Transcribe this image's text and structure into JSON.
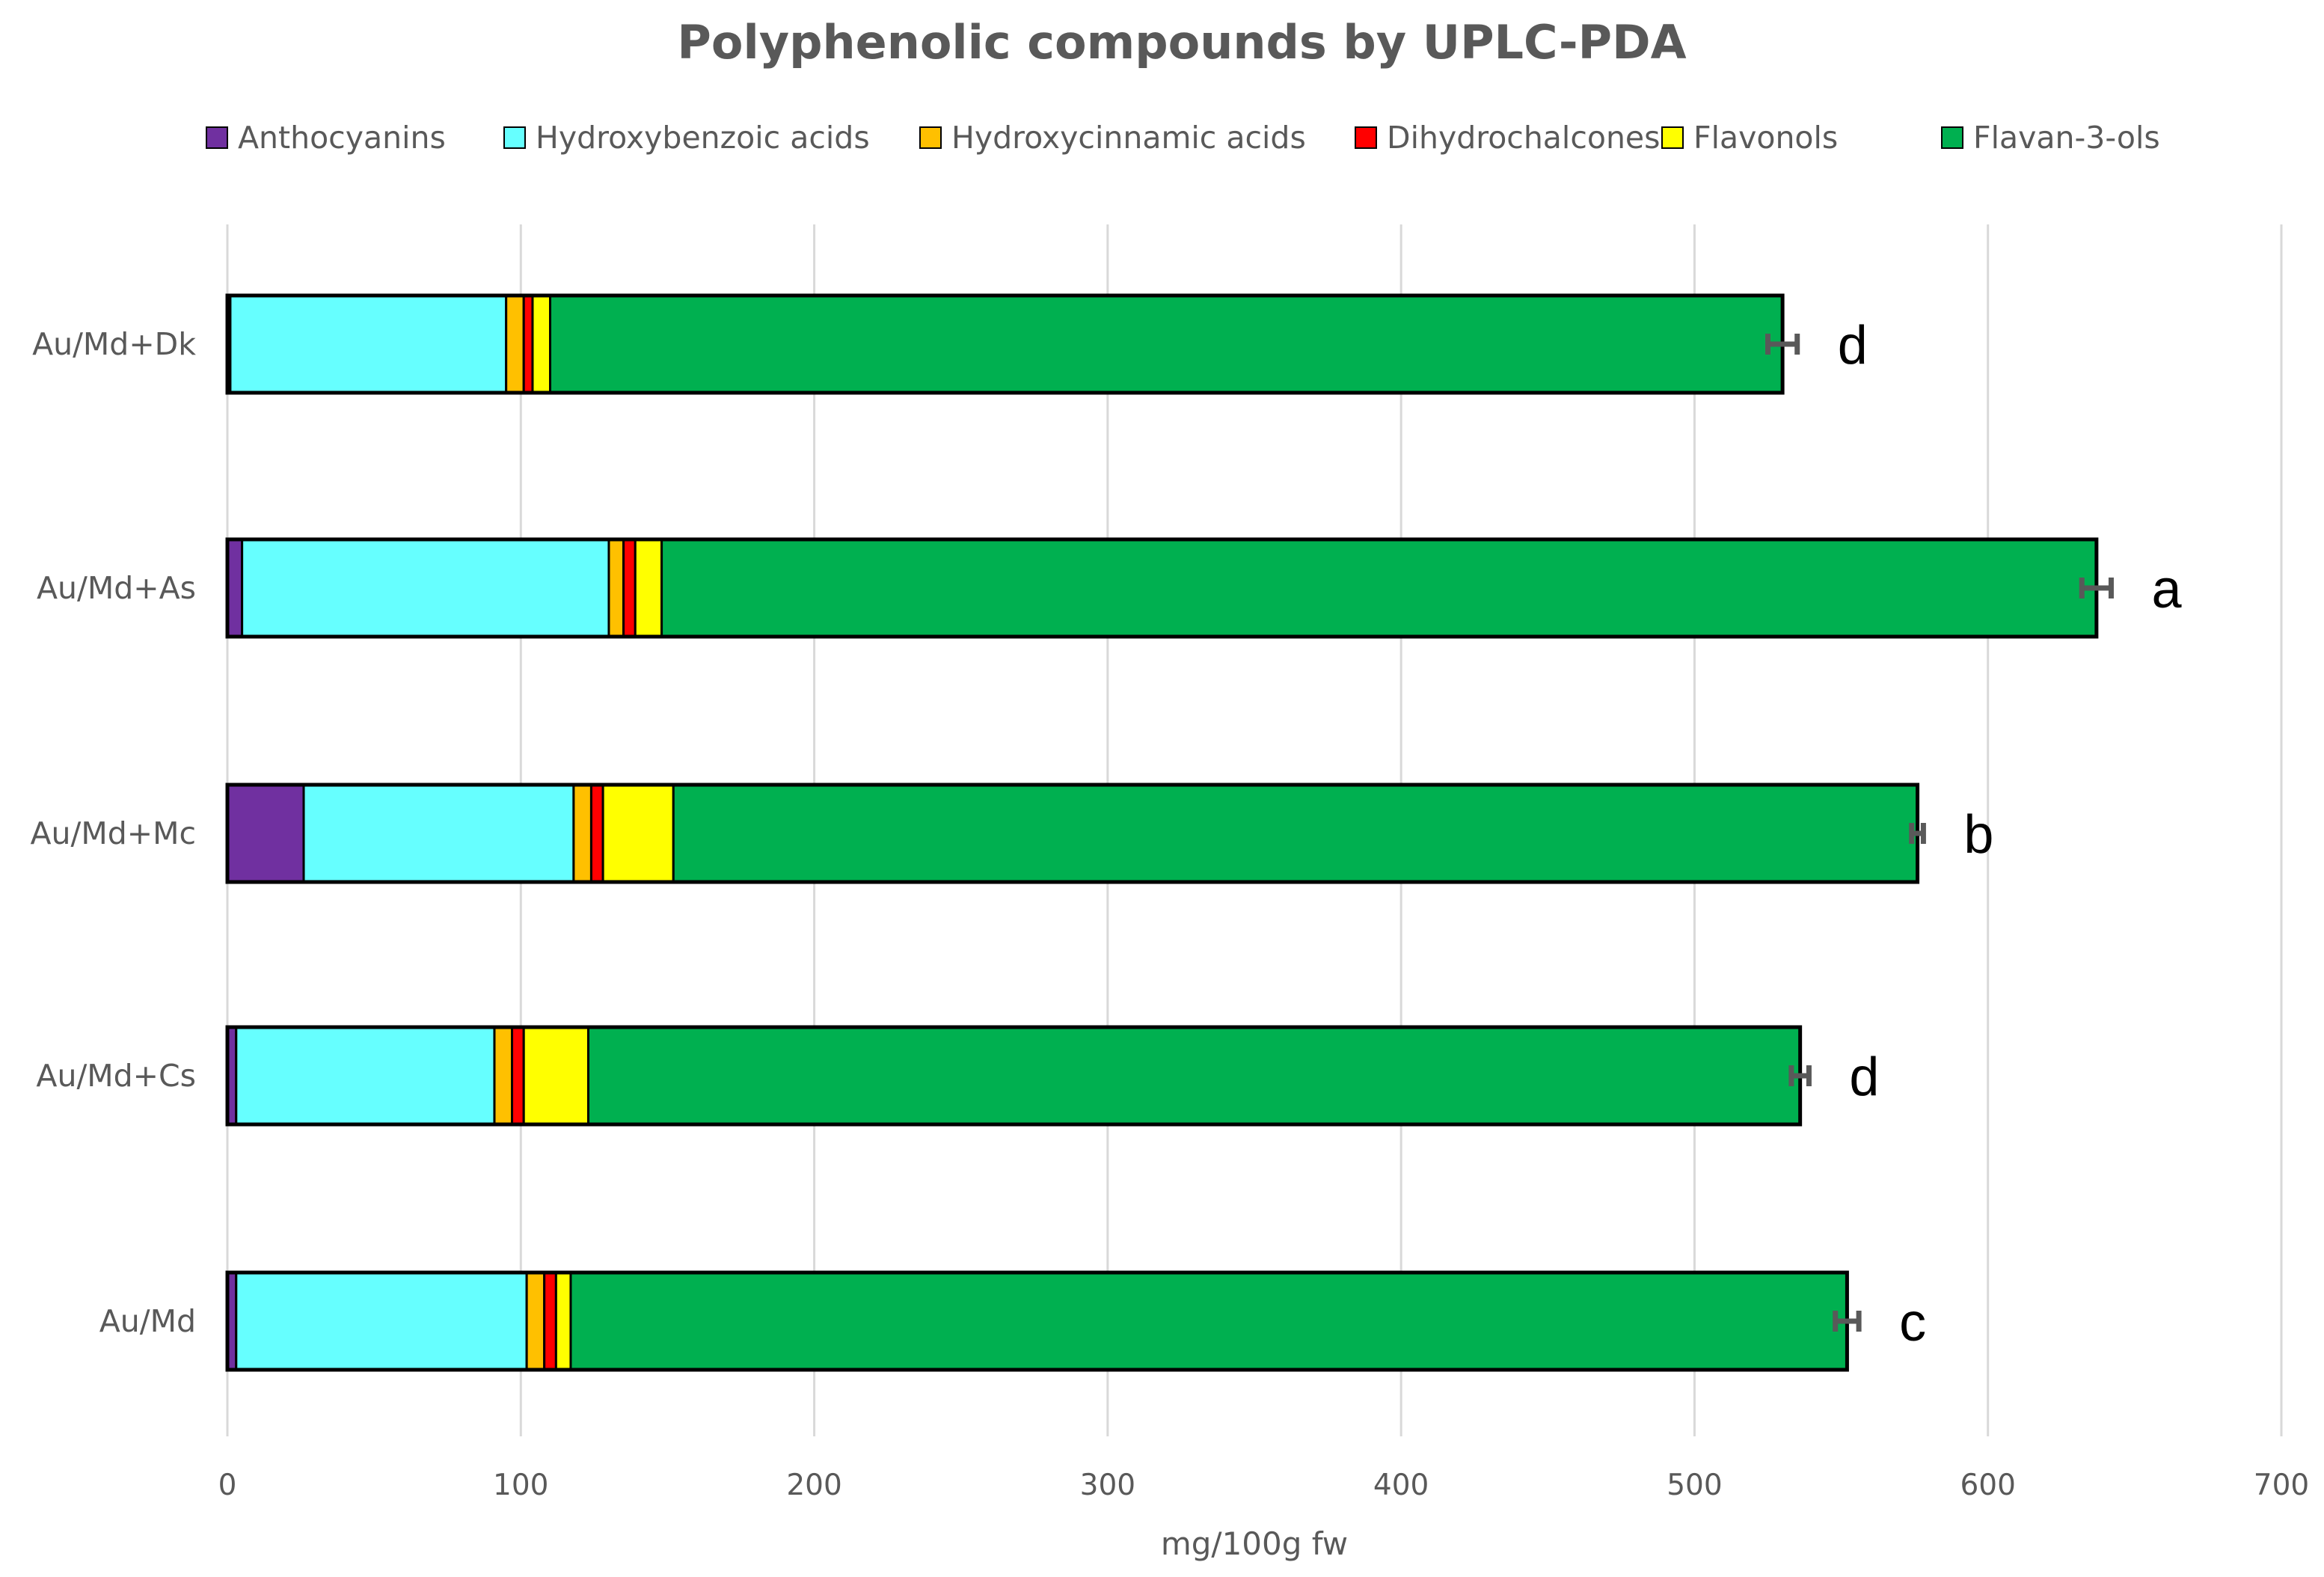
{
  "chart_data": {
    "type": "bar",
    "orientation": "horizontal",
    "stacked": true,
    "title": "Polyphenolic compounds by UPLC-PDA",
    "xlabel": "mg/100g fw",
    "ylabel": "",
    "xlim": [
      0,
      700
    ],
    "xticks": [
      0,
      100,
      200,
      300,
      400,
      500,
      600,
      700
    ],
    "grid": true,
    "legend_position": "top",
    "categories": [
      "Au/Md+Dk",
      "Au/Md+As",
      "Au/Md+Mc",
      "Au/Md+Cs",
      "Au/Md"
    ],
    "series": [
      {
        "name": "Anthocyanins",
        "color": "#7030A0",
        "values": [
          1,
          5,
          26,
          3,
          3
        ]
      },
      {
        "name": "Hydroxybenzoic acids",
        "color": "#66FFFF",
        "values": [
          94,
          125,
          92,
          88,
          99
        ]
      },
      {
        "name": "Hydroxycinnamic acids",
        "color": "#FFC000",
        "values": [
          6,
          5,
          6,
          6,
          6
        ]
      },
      {
        "name": "Dihydrochalcones",
        "color": "#FF0000",
        "values": [
          3,
          4,
          4,
          4,
          4
        ]
      },
      {
        "name": "Flavonols",
        "color": "#FFFF00",
        "values": [
          6,
          9,
          24,
          22,
          5
        ]
      },
      {
        "name": "Flavan-3-ols",
        "color": "#00B050",
        "values": [
          420,
          489,
          424,
          413,
          435
        ]
      }
    ],
    "error_bars": [
      5,
      5,
      2,
      3,
      4
    ],
    "significance_letters": [
      "d",
      "a",
      "b",
      "d",
      "c"
    ]
  }
}
